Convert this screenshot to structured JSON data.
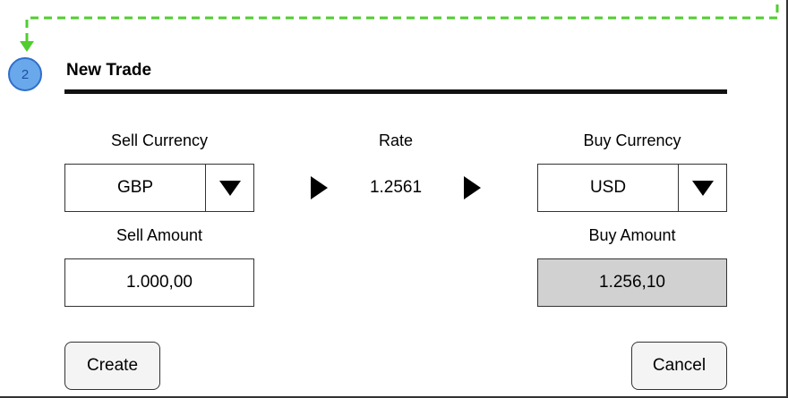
{
  "step": {
    "number": "2"
  },
  "form": {
    "title": "New Trade"
  },
  "sell": {
    "currency_label": "Sell Currency",
    "currency_value": "GBP",
    "amount_label": "Sell Amount",
    "amount_value": "1.000,00"
  },
  "rate": {
    "label": "Rate",
    "value": "1.2561"
  },
  "buy": {
    "currency_label": "Buy Currency",
    "currency_value": "USD",
    "amount_label": "Buy Amount",
    "amount_value": "1.256,10"
  },
  "actions": {
    "create_label": "Create",
    "cancel_label": "Cancel"
  },
  "icons": {
    "sell_dropdown": "triangle-down-icon",
    "buy_dropdown": "triangle-down-icon",
    "flow_arrows": "triangle-right-icon"
  },
  "colors": {
    "connector": "#4fce2e",
    "badge_fill": "#6aa8ec",
    "badge_border": "#2f6fc9",
    "readonly_fill": "#d1d1d1"
  }
}
